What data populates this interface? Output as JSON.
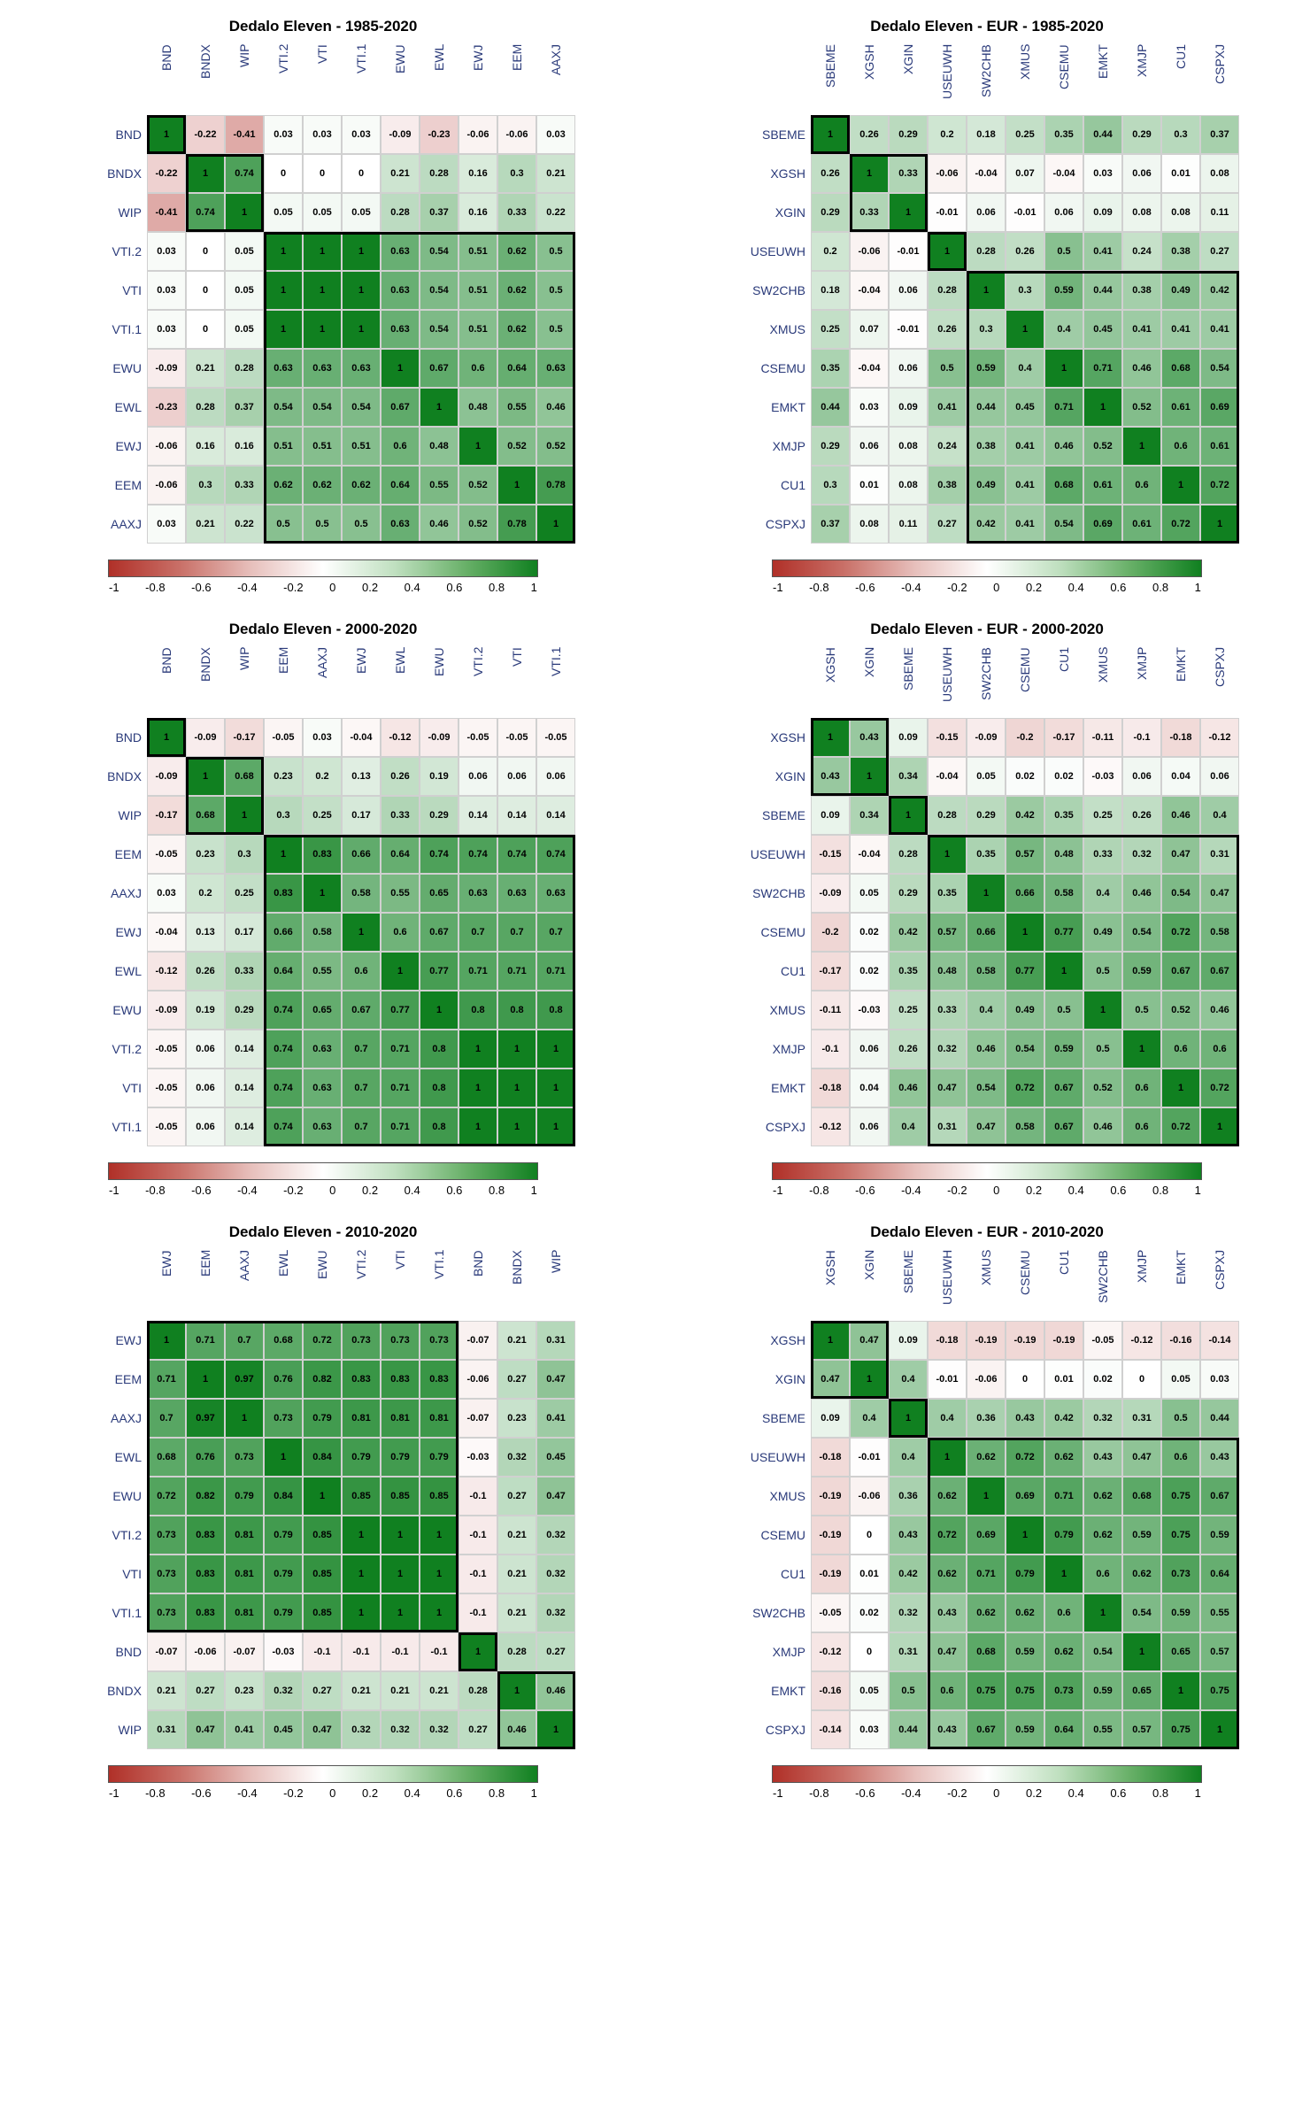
{
  "colorbar": {
    "stops": [
      "#b03028",
      "#c97068",
      "#e7c0bc",
      "#ffffff",
      "#c0e0c0",
      "#68b068",
      "#108020"
    ],
    "ticks": [
      "-1",
      "-0.8",
      "-0.6",
      "-0.4",
      "-0.2",
      "0",
      "0.2",
      "0.4",
      "0.6",
      "0.8",
      "1"
    ]
  },
  "cell_size": 44,
  "label_fontsize": 14,
  "value_fontsize": 11,
  "panels": [
    {
      "title": "Dedalo Eleven - 1985-2020",
      "labels": [
        "BND",
        "BNDX",
        "WIP",
        "VTI.2",
        "VTI",
        "VTI.1",
        "EWU",
        "EWL",
        "EWJ",
        "EEM",
        "AAXJ"
      ],
      "values": [
        [
          1,
          -0.22,
          -0.41,
          0.03,
          0.03,
          0.03,
          -0.09,
          -0.23,
          -0.06,
          -0.06,
          0.03
        ],
        [
          -0.22,
          1,
          0.74,
          0,
          0,
          0,
          0.21,
          0.28,
          0.16,
          0.3,
          0.21
        ],
        [
          -0.41,
          0.74,
          1,
          0.05,
          0.05,
          0.05,
          0.28,
          0.37,
          0.16,
          0.33,
          0.22
        ],
        [
          0.03,
          0,
          0.05,
          1,
          1,
          1,
          0.63,
          0.54,
          0.51,
          0.62,
          0.5
        ],
        [
          0.03,
          0,
          0.05,
          1,
          1,
          1,
          0.63,
          0.54,
          0.51,
          0.62,
          0.5
        ],
        [
          0.03,
          0,
          0.05,
          1,
          1,
          1,
          0.63,
          0.54,
          0.51,
          0.62,
          0.5
        ],
        [
          -0.09,
          0.21,
          0.28,
          0.63,
          0.63,
          0.63,
          1,
          0.67,
          0.6,
          0.64,
          0.63
        ],
        [
          -0.23,
          0.28,
          0.37,
          0.54,
          0.54,
          0.54,
          0.67,
          1,
          0.48,
          0.55,
          0.46
        ],
        [
          -0.06,
          0.16,
          0.16,
          0.51,
          0.51,
          0.51,
          0.6,
          0.48,
          1,
          0.52,
          0.52
        ],
        [
          -0.06,
          0.3,
          0.33,
          0.62,
          0.62,
          0.62,
          0.64,
          0.55,
          0.52,
          1,
          0.78
        ],
        [
          0.03,
          0.21,
          0.22,
          0.5,
          0.5,
          0.5,
          0.63,
          0.46,
          0.52,
          0.78,
          1
        ]
      ],
      "blocks": [
        {
          "r": 0,
          "c": 0,
          "w": 1,
          "h": 1
        },
        {
          "r": 1,
          "c": 1,
          "w": 2,
          "h": 2
        },
        {
          "r": 3,
          "c": 3,
          "w": 8,
          "h": 8
        }
      ]
    },
    {
      "title": "Dedalo Eleven - EUR - 1985-2020",
      "labels": [
        "SBEME",
        "XGSH",
        "XGIN",
        "USEUWH",
        "SW2CHB",
        "XMUS",
        "CSEMU",
        "EMKT",
        "XMJP",
        "CU1",
        "CSPXJ"
      ],
      "values": [
        [
          1,
          0.26,
          0.29,
          0.2,
          0.18,
          0.25,
          0.35,
          0.44,
          0.29,
          0.3,
          0.37
        ],
        [
          0.26,
          1,
          0.33,
          -0.06,
          -0.04,
          0.07,
          -0.04,
          0.03,
          0.06,
          0.01,
          0.08
        ],
        [
          0.29,
          0.33,
          1,
          -0.01,
          0.06,
          -0.01,
          0.06,
          0.09,
          0.08,
          0.08,
          0.11
        ],
        [
          0.2,
          -0.06,
          -0.01,
          1,
          0.28,
          0.26,
          0.5,
          0.41,
          0.24,
          0.38,
          0.27
        ],
        [
          0.18,
          -0.04,
          0.06,
          0.28,
          1,
          0.3,
          0.59,
          0.44,
          0.38,
          0.49,
          0.42
        ],
        [
          0.25,
          0.07,
          -0.01,
          0.26,
          0.3,
          1,
          0.4,
          0.45,
          0.41,
          0.41,
          0.41
        ],
        [
          0.35,
          -0.04,
          0.06,
          0.5,
          0.59,
          0.4,
          1,
          0.71,
          0.46,
          0.68,
          0.54
        ],
        [
          0.44,
          0.03,
          0.09,
          0.41,
          0.44,
          0.45,
          0.71,
          1,
          0.52,
          0.61,
          0.69
        ],
        [
          0.29,
          0.06,
          0.08,
          0.24,
          0.38,
          0.41,
          0.46,
          0.52,
          1,
          0.6,
          0.61
        ],
        [
          0.3,
          0.01,
          0.08,
          0.38,
          0.49,
          0.41,
          0.68,
          0.61,
          0.6,
          1,
          0.72
        ],
        [
          0.37,
          0.08,
          0.11,
          0.27,
          0.42,
          0.41,
          0.54,
          0.69,
          0.61,
          0.72,
          1
        ]
      ],
      "blocks": [
        {
          "r": 0,
          "c": 0,
          "w": 1,
          "h": 1
        },
        {
          "r": 1,
          "c": 1,
          "w": 2,
          "h": 2
        },
        {
          "r": 3,
          "c": 3,
          "w": 1,
          "h": 1
        },
        {
          "r": 4,
          "c": 4,
          "w": 7,
          "h": 7
        }
      ]
    },
    {
      "title": "Dedalo Eleven - 2000-2020",
      "labels": [
        "BND",
        "BNDX",
        "WIP",
        "EEM",
        "AAXJ",
        "EWJ",
        "EWL",
        "EWU",
        "VTI.2",
        "VTI",
        "VTI.1"
      ],
      "values": [
        [
          1,
          -0.09,
          -0.17,
          -0.05,
          0.03,
          -0.04,
          -0.12,
          -0.09,
          -0.05,
          -0.05,
          -0.05
        ],
        [
          -0.09,
          1,
          0.68,
          0.23,
          0.2,
          0.13,
          0.26,
          0.19,
          0.06,
          0.06,
          0.06
        ],
        [
          -0.17,
          0.68,
          1,
          0.3,
          0.25,
          0.17,
          0.33,
          0.29,
          0.14,
          0.14,
          0.14
        ],
        [
          -0.05,
          0.23,
          0.3,
          1,
          0.83,
          0.66,
          0.64,
          0.74,
          0.74,
          0.74,
          0.74
        ],
        [
          0.03,
          0.2,
          0.25,
          0.83,
          1,
          0.58,
          0.55,
          0.65,
          0.63,
          0.63,
          0.63
        ],
        [
          -0.04,
          0.13,
          0.17,
          0.66,
          0.58,
          1,
          0.6,
          0.67,
          0.7,
          0.7,
          0.7
        ],
        [
          -0.12,
          0.26,
          0.33,
          0.64,
          0.55,
          0.6,
          1,
          0.77,
          0.71,
          0.71,
          0.71
        ],
        [
          -0.09,
          0.19,
          0.29,
          0.74,
          0.65,
          0.67,
          0.77,
          1,
          0.8,
          0.8,
          0.8
        ],
        [
          -0.05,
          0.06,
          0.14,
          0.74,
          0.63,
          0.7,
          0.71,
          0.8,
          1,
          1,
          1
        ],
        [
          -0.05,
          0.06,
          0.14,
          0.74,
          0.63,
          0.7,
          0.71,
          0.8,
          1,
          1,
          1
        ],
        [
          -0.05,
          0.06,
          0.14,
          0.74,
          0.63,
          0.7,
          0.71,
          0.8,
          1,
          1,
          1
        ]
      ],
      "blocks": [
        {
          "r": 0,
          "c": 0,
          "w": 1,
          "h": 1
        },
        {
          "r": 1,
          "c": 1,
          "w": 2,
          "h": 2
        },
        {
          "r": 3,
          "c": 3,
          "w": 8,
          "h": 8
        }
      ]
    },
    {
      "title": "Dedalo Eleven - EUR - 2000-2020",
      "labels": [
        "XGSH",
        "XGIN",
        "SBEME",
        "USEUWH",
        "SW2CHB",
        "CSEMU",
        "CU1",
        "XMUS",
        "XMJP",
        "EMKT",
        "CSPXJ"
      ],
      "values": [
        [
          1,
          0.43,
          0.09,
          -0.15,
          -0.09,
          -0.2,
          -0.17,
          -0.11,
          -0.1,
          -0.18,
          -0.12
        ],
        [
          0.43,
          1,
          0.34,
          -0.04,
          0.05,
          0.02,
          0.02,
          -0.03,
          0.06,
          0.04,
          0.06
        ],
        [
          0.09,
          0.34,
          1,
          0.28,
          0.29,
          0.42,
          0.35,
          0.25,
          0.26,
          0.46,
          0.4
        ],
        [
          -0.15,
          -0.04,
          0.28,
          1,
          0.35,
          0.57,
          0.48,
          0.33,
          0.32,
          0.47,
          0.31
        ],
        [
          -0.09,
          0.05,
          0.29,
          0.35,
          1,
          0.66,
          0.58,
          0.4,
          0.46,
          0.54,
          0.47
        ],
        [
          -0.2,
          0.02,
          0.42,
          0.57,
          0.66,
          1,
          0.77,
          0.49,
          0.54,
          0.72,
          0.58
        ],
        [
          -0.17,
          0.02,
          0.35,
          0.48,
          0.58,
          0.77,
          1,
          0.5,
          0.59,
          0.67,
          0.67
        ],
        [
          -0.11,
          -0.03,
          0.25,
          0.33,
          0.4,
          0.49,
          0.5,
          1,
          0.5,
          0.52,
          0.46
        ],
        [
          -0.1,
          0.06,
          0.26,
          0.32,
          0.46,
          0.54,
          0.59,
          0.5,
          1,
          0.6,
          0.6
        ],
        [
          -0.18,
          0.04,
          0.46,
          0.47,
          0.54,
          0.72,
          0.67,
          0.52,
          0.6,
          1,
          0.72
        ],
        [
          -0.12,
          0.06,
          0.4,
          0.31,
          0.47,
          0.58,
          0.67,
          0.46,
          0.6,
          0.72,
          1
        ]
      ],
      "blocks": [
        {
          "r": 0,
          "c": 0,
          "w": 2,
          "h": 2
        },
        {
          "r": 2,
          "c": 2,
          "w": 1,
          "h": 1
        },
        {
          "r": 3,
          "c": 3,
          "w": 8,
          "h": 8
        }
      ]
    },
    {
      "title": "Dedalo Eleven - 2010-2020",
      "labels": [
        "EWJ",
        "EEM",
        "AAXJ",
        "EWL",
        "EWU",
        "VTI.2",
        "VTI",
        "VTI.1",
        "BND",
        "BNDX",
        "WIP"
      ],
      "values": [
        [
          1,
          0.71,
          0.7,
          0.68,
          0.72,
          0.73,
          0.73,
          0.73,
          -0.07,
          0.21,
          0.31
        ],
        [
          0.71,
          1,
          0.97,
          0.76,
          0.82,
          0.83,
          0.83,
          0.83,
          -0.06,
          0.27,
          0.47
        ],
        [
          0.7,
          0.97,
          1,
          0.73,
          0.79,
          0.81,
          0.81,
          0.81,
          -0.07,
          0.23,
          0.41
        ],
        [
          0.68,
          0.76,
          0.73,
          1,
          0.84,
          0.79,
          0.79,
          0.79,
          -0.03,
          0.32,
          0.45
        ],
        [
          0.72,
          0.82,
          0.79,
          0.84,
          1,
          0.85,
          0.85,
          0.85,
          -0.1,
          0.27,
          0.47
        ],
        [
          0.73,
          0.83,
          0.81,
          0.79,
          0.85,
          1,
          1,
          1,
          -0.1,
          0.21,
          0.32
        ],
        [
          0.73,
          0.83,
          0.81,
          0.79,
          0.85,
          1,
          1,
          1,
          -0.1,
          0.21,
          0.32
        ],
        [
          0.73,
          0.83,
          0.81,
          0.79,
          0.85,
          1,
          1,
          1,
          -0.1,
          0.21,
          0.32
        ],
        [
          -0.07,
          -0.06,
          -0.07,
          -0.03,
          -0.1,
          -0.1,
          -0.1,
          -0.1,
          1,
          0.28,
          0.27
        ],
        [
          0.21,
          0.27,
          0.23,
          0.32,
          0.27,
          0.21,
          0.21,
          0.21,
          0.28,
          1,
          0.46
        ],
        [
          0.31,
          0.47,
          0.41,
          0.45,
          0.47,
          0.32,
          0.32,
          0.32,
          0.27,
          0.46,
          1
        ]
      ],
      "blocks": [
        {
          "r": 0,
          "c": 0,
          "w": 8,
          "h": 8
        },
        {
          "r": 8,
          "c": 8,
          "w": 1,
          "h": 1
        },
        {
          "r": 9,
          "c": 9,
          "w": 2,
          "h": 2
        }
      ]
    },
    {
      "title": "Dedalo Eleven - EUR - 2010-2020",
      "labels": [
        "XGSH",
        "XGIN",
        "SBEME",
        "USEUWH",
        "XMUS",
        "CSEMU",
        "CU1",
        "SW2CHB",
        "XMJP",
        "EMKT",
        "CSPXJ"
      ],
      "values": [
        [
          1,
          0.47,
          0.09,
          -0.18,
          -0.19,
          -0.19,
          -0.19,
          -0.05,
          -0.12,
          -0.16,
          -0.14
        ],
        [
          0.47,
          1,
          0.4,
          -0.01,
          -0.06,
          0,
          0.01,
          0.02,
          0,
          0.05,
          0.03
        ],
        [
          0.09,
          0.4,
          1,
          0.4,
          0.36,
          0.43,
          0.42,
          0.32,
          0.31,
          0.5,
          0.44
        ],
        [
          -0.18,
          -0.01,
          0.4,
          1,
          0.62,
          0.72,
          0.62,
          0.43,
          0.47,
          0.6,
          0.43
        ],
        [
          -0.19,
          -0.06,
          0.36,
          0.62,
          1,
          0.69,
          0.71,
          0.62,
          0.68,
          0.75,
          0.67
        ],
        [
          -0.19,
          0,
          0.43,
          0.72,
          0.69,
          1,
          0.79,
          0.62,
          0.59,
          0.75,
          0.59
        ],
        [
          -0.19,
          0.01,
          0.42,
          0.62,
          0.71,
          0.79,
          1,
          0.6,
          0.62,
          0.73,
          0.64
        ],
        [
          -0.05,
          0.02,
          0.32,
          0.43,
          0.62,
          0.62,
          0.6,
          1,
          0.54,
          0.59,
          0.55
        ],
        [
          -0.12,
          0,
          0.31,
          0.47,
          0.68,
          0.59,
          0.62,
          0.54,
          1,
          0.65,
          0.57
        ],
        [
          -0.16,
          0.05,
          0.5,
          0.6,
          0.75,
          0.75,
          0.73,
          0.59,
          0.65,
          1,
          0.75
        ],
        [
          -0.14,
          0.03,
          0.44,
          0.43,
          0.67,
          0.59,
          0.64,
          0.55,
          0.57,
          0.75,
          1
        ]
      ],
      "blocks": [
        {
          "r": 0,
          "c": 0,
          "w": 2,
          "h": 2
        },
        {
          "r": 2,
          "c": 2,
          "w": 1,
          "h": 1
        },
        {
          "r": 3,
          "c": 3,
          "w": 8,
          "h": 8
        }
      ]
    }
  ]
}
